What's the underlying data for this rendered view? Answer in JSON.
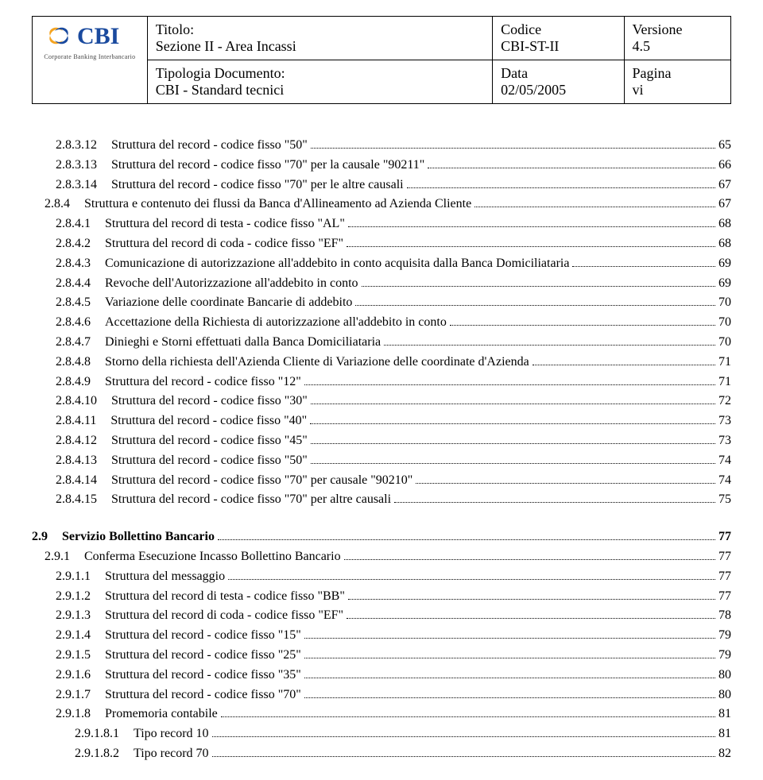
{
  "header": {
    "logo_text": "CBI",
    "logo_caption": "Corporate Banking Interbancario",
    "logo_colors": {
      "blue": "#1a4a9e",
      "orange": "#f5a420"
    },
    "row1": {
      "title_label": "Titolo:",
      "title_value": "Sezione II - Area Incassi",
      "code_label": "Codice",
      "code_value": "CBI-ST-II",
      "ver_label": "Versione",
      "ver_value": "4.5"
    },
    "row2": {
      "doc_label": "Tipologia Documento:",
      "doc_value": "CBI - Standard tecnici",
      "date_label": "Data",
      "date_value": "02/05/2005",
      "page_label": "Pagina",
      "page_value": "vi"
    }
  },
  "toc": [
    {
      "num": "2.8.3.12",
      "title": "Struttura del record - codice fisso \"50\"",
      "page": "65",
      "indent": 2,
      "bold": false
    },
    {
      "num": "2.8.3.13",
      "title": "Struttura del record - codice fisso \"70\" per la causale \"90211\"",
      "page": "66",
      "indent": 2,
      "bold": false
    },
    {
      "num": "2.8.3.14",
      "title": "Struttura del record - codice fisso \"70\" per le altre causali",
      "page": "67",
      "indent": 2,
      "bold": false
    },
    {
      "num": "2.8.4",
      "title": "Struttura e contenuto dei flussi da Banca d'Allineamento ad Azienda Cliente",
      "page": "67",
      "indent": 1,
      "bold": false
    },
    {
      "num": "2.8.4.1",
      "title": "Struttura del record di testa - codice fisso \"AL\"",
      "page": "68",
      "indent": 2,
      "bold": false
    },
    {
      "num": "2.8.4.2",
      "title": "Struttura del record di coda - codice fisso \"EF\"",
      "page": "68",
      "indent": 2,
      "bold": false
    },
    {
      "num": "2.8.4.3",
      "title": "Comunicazione di autorizzazione all'addebito in conto acquisita dalla Banca Domiciliataria",
      "page": "69",
      "indent": 2,
      "bold": false
    },
    {
      "num": "2.8.4.4",
      "title": "Revoche dell'Autorizzazione all'addebito in conto",
      "page": "69",
      "indent": 2,
      "bold": false
    },
    {
      "num": "2.8.4.5",
      "title": "Variazione delle coordinate Bancarie di addebito",
      "page": "70",
      "indent": 2,
      "bold": false
    },
    {
      "num": "2.8.4.6",
      "title": "Accettazione della Richiesta di autorizzazione all'addebito in conto",
      "page": "70",
      "indent": 2,
      "bold": false
    },
    {
      "num": "2.8.4.7",
      "title": "Dinieghi e Storni effettuati dalla Banca Domiciliataria",
      "page": "70",
      "indent": 2,
      "bold": false
    },
    {
      "num": "2.8.4.8",
      "title": "Storno della richiesta dell'Azienda Cliente di Variazione delle coordinate d'Azienda",
      "page": "71",
      "indent": 2,
      "bold": false
    },
    {
      "num": "2.8.4.9",
      "title": "Struttura del record - codice fisso \"12\"",
      "page": "71",
      "indent": 2,
      "bold": false
    },
    {
      "num": "2.8.4.10",
      "title": "Struttura del record - codice fisso \"30\"",
      "page": "72",
      "indent": 2,
      "bold": false
    },
    {
      "num": "2.8.4.11",
      "title": "Struttura del record - codice fisso \"40\"",
      "page": "73",
      "indent": 2,
      "bold": false
    },
    {
      "num": "2.8.4.12",
      "title": "Struttura del record - codice fisso \"45\"",
      "page": "73",
      "indent": 2,
      "bold": false
    },
    {
      "num": "2.8.4.13",
      "title": "Struttura del record - codice fisso \"50\"",
      "page": "74",
      "indent": 2,
      "bold": false
    },
    {
      "num": "2.8.4.14",
      "title": "Struttura del record - codice fisso \"70\" per causale \"90210\"",
      "page": "74",
      "indent": 2,
      "bold": false
    },
    {
      "num": "2.8.4.15",
      "title": "Struttura del record - codice fisso \"70\" per altre causali",
      "page": "75",
      "indent": 2,
      "bold": false
    },
    {
      "num": "2.9",
      "title": "Servizio Bollettino Bancario",
      "page": "77",
      "indent": 0,
      "bold": true,
      "break_before": true
    },
    {
      "num": "2.9.1",
      "title": "Conferma Esecuzione Incasso Bollettino Bancario",
      "page": "77",
      "indent": 1,
      "bold": false
    },
    {
      "num": "2.9.1.1",
      "title": "Struttura del messaggio",
      "page": "77",
      "indent": 2,
      "bold": false
    },
    {
      "num": "2.9.1.2",
      "title": "Struttura del record di testa - codice fisso \"BB\"",
      "page": "77",
      "indent": 2,
      "bold": false
    },
    {
      "num": "2.9.1.3",
      "title": "Struttura del record di coda - codice fisso \"EF\"",
      "page": "78",
      "indent": 2,
      "bold": false
    },
    {
      "num": "2.9.1.4",
      "title": "Struttura del record - codice fisso \"15\"",
      "page": "79",
      "indent": 2,
      "bold": false
    },
    {
      "num": "2.9.1.5",
      "title": "Struttura del record - codice fisso \"25\"",
      "page": "79",
      "indent": 2,
      "bold": false
    },
    {
      "num": "2.9.1.6",
      "title": "Struttura del record - codice fisso \"35\"",
      "page": "80",
      "indent": 2,
      "bold": false
    },
    {
      "num": "2.9.1.7",
      "title": "Struttura del record - codice fisso \"70\"",
      "page": "80",
      "indent": 2,
      "bold": false
    },
    {
      "num": "2.9.1.8",
      "title": "Promemoria contabile",
      "page": "81",
      "indent": 2,
      "bold": false
    },
    {
      "num": "2.9.1.8.1",
      "title": "Tipo record 10",
      "page": "81",
      "indent": 3,
      "bold": false
    },
    {
      "num": "2.9.1.8.2",
      "title": "Tipo record 70",
      "page": "82",
      "indent": 3,
      "bold": false
    }
  ]
}
